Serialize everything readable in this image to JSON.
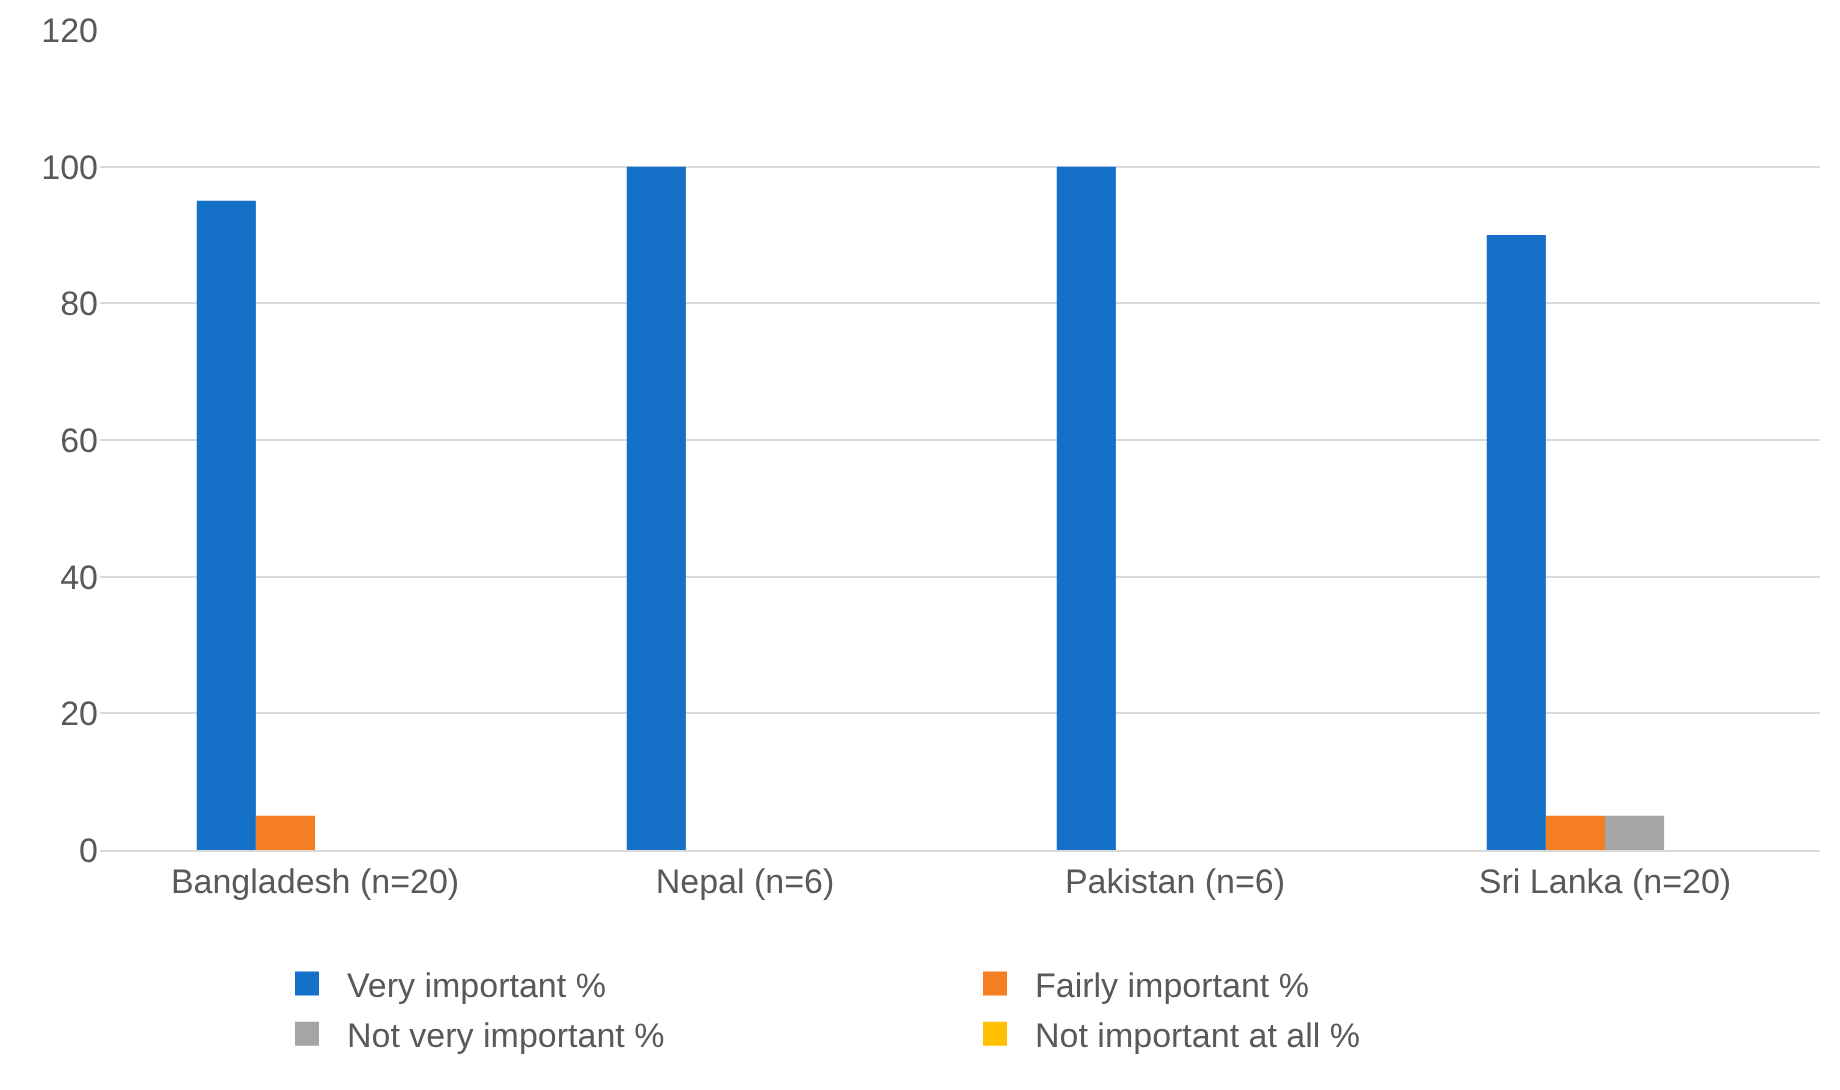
{
  "chart_data": {
    "type": "bar",
    "categories": [
      "Bangladesh (n=20)",
      "Nepal (n=6)",
      "Pakistan (n=6)",
      "Sri Lanka (n=20)"
    ],
    "series": [
      {
        "name": "Very important %",
        "color": "#1570c8",
        "values": [
          95,
          100,
          100,
          90
        ]
      },
      {
        "name": "Fairly important %",
        "color": "#f57d22",
        "values": [
          5,
          0,
          0,
          5
        ]
      },
      {
        "name": "Not very important %",
        "color": "#a5a5a5",
        "values": [
          0,
          0,
          0,
          5
        ]
      },
      {
        "name": "Not important at all %",
        "color": "#ffc000",
        "values": [
          0,
          0,
          0,
          0
        ]
      }
    ],
    "ylim": [
      0,
      120
    ],
    "yticks": [
      0,
      20,
      40,
      60,
      80,
      100,
      120
    ],
    "grid": "y",
    "legend": "bottom"
  }
}
